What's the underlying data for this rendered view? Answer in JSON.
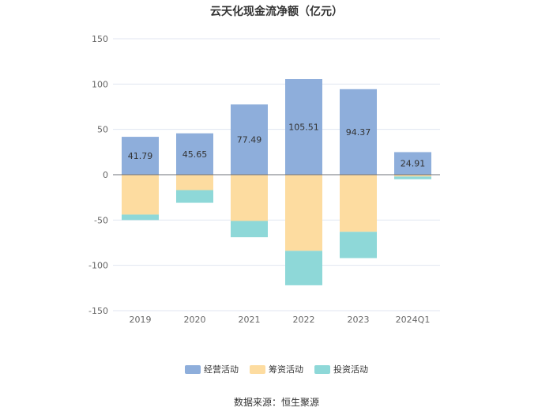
{
  "chart_data": {
    "type": "bar",
    "stacked": true,
    "title": "云天化现金流净额（亿元）",
    "categories": [
      "2019",
      "2020",
      "2021",
      "2022",
      "2023",
      "2024Q1"
    ],
    "series": [
      {
        "name": "经营活动",
        "values": [
          41.79,
          45.65,
          77.49,
          105.51,
          94.37,
          24.91
        ],
        "color": "#8eaedb",
        "show_labels": true
      },
      {
        "name": "筹资活动",
        "values": [
          -44.0,
          -17.0,
          -51.0,
          -84.0,
          -63.0,
          -2.0
        ],
        "color": "#fddca0",
        "show_labels": false
      },
      {
        "name": "投资活动",
        "values": [
          -6.0,
          -14.0,
          -18.0,
          -38.0,
          -29.0,
          -3.0
        ],
        "color": "#8ed8d8",
        "show_labels": false
      }
    ],
    "ylim": [
      -150,
      150
    ],
    "yticks": [
      150,
      100,
      50,
      0,
      -50,
      -100,
      -150
    ],
    "xlabel": "",
    "ylabel": "",
    "grid": true,
    "legend_position": "bottom"
  },
  "source": "数据来源：恒生聚源"
}
